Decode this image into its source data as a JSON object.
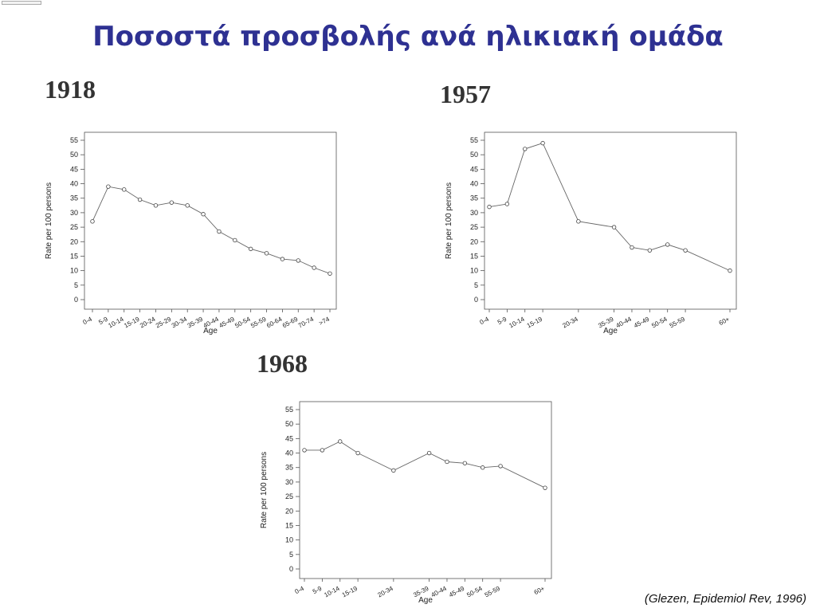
{
  "slide": {
    "title": "Ποσοστά προσβολής ανά ηλικιακή ομάδα",
    "citation": "(Glezen, Epidemiol Rev, 1996)"
  },
  "chart_data": [
    {
      "type": "line",
      "title": "1918",
      "xlabel": "Age",
      "ylabel": "Rate per 100 persons",
      "ylim": [
        0,
        55
      ],
      "yticks": [
        0,
        5,
        10,
        15,
        20,
        25,
        30,
        35,
        40,
        45,
        50,
        55
      ],
      "grid": false,
      "categories": [
        "0-4",
        "5-9",
        "10-14",
        "15-19",
        "20-24",
        "25-29",
        "30-34",
        "35-39",
        "40-44",
        "45-49",
        "50-54",
        "55-59",
        "60-64",
        "65-69",
        "70-74",
        ">74"
      ],
      "values": [
        27,
        39,
        38,
        34.5,
        32.5,
        33.5,
        32.5,
        29.5,
        23.5,
        20.5,
        17.5,
        16,
        14,
        13.5,
        11,
        9
      ]
    },
    {
      "type": "line",
      "title": "1957",
      "xlabel": "Age",
      "ylabel": "Rate per 100 persons",
      "ylim": [
        0,
        55
      ],
      "yticks": [
        0,
        5,
        10,
        15,
        20,
        25,
        30,
        35,
        40,
        45,
        50,
        55
      ],
      "grid": false,
      "categories": [
        "0-4",
        "5-9",
        "10-14",
        "15-19",
        "20-34",
        "35-39",
        "40-44",
        "45-49",
        "50-54",
        "55-59",
        "60+"
      ],
      "x": [
        2,
        7,
        12,
        17,
        27,
        37,
        42,
        47,
        52,
        57,
        69.5
      ],
      "values": [
        32,
        33,
        52,
        54,
        27,
        25,
        18,
        17,
        19,
        17,
        10
      ]
    },
    {
      "type": "line",
      "title": "1968",
      "xlabel": "Age",
      "ylabel": "Rate per 100 persons",
      "ylim": [
        0,
        55
      ],
      "yticks": [
        0,
        5,
        10,
        15,
        20,
        25,
        30,
        35,
        40,
        45,
        50,
        55
      ],
      "grid": false,
      "categories": [
        "0-4",
        "5-9",
        "10-14",
        "15-19",
        "20-34",
        "35-39",
        "40-44",
        "45-49",
        "50-54",
        "55-59",
        "60+"
      ],
      "x": [
        2,
        7,
        12,
        17,
        27,
        37,
        42,
        47,
        52,
        57,
        69.5
      ],
      "values": [
        41,
        41,
        44,
        40,
        34,
        40,
        37,
        36.5,
        35,
        35.5,
        28
      ]
    }
  ]
}
